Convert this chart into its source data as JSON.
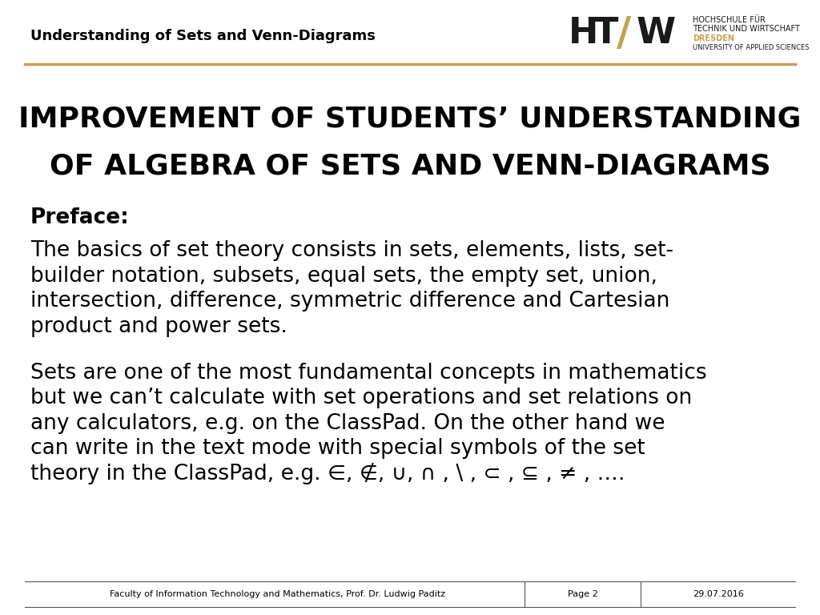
{
  "bg_color": "#ffffff",
  "header_title": "Understanding of Sets and Venn-Diagrams",
  "header_line_color": "#c8a050",
  "logo_text1": "HOCHSCHULE FÜR",
  "logo_text2": "TECHNIK UND WIRTSCHAFT",
  "logo_text3": "DRESDEN",
  "logo_text4": "UNIVERSITY OF APPLIED SCIENCES",
  "logo_color": "#c8a050",
  "main_title_line1": "IMPROVEMENT OF STUDENTS’ UNDERSTANDING",
  "main_title_line2": "OF ALGEBRA OF SETS AND VENN-DIAGRAMS",
  "preface_label": "Preface:",
  "para1_lines": [
    "The basics of set theory consists in sets, elements, lists, set-",
    "builder notation, subsets, equal sets, the empty set, union,",
    "intersection, difference, symmetric difference and Cartesian",
    "product and power sets."
  ],
  "para2_lines": [
    "Sets are one of the most fundamental concepts in mathematics",
    "but we can’t calculate with set operations and set relations on",
    "any calculators, e.g. on the ClassPad. On the other hand we",
    "can write in the text mode with special symbols of the set",
    "theory in the ClassPad, e.g. ∈, ∉, ∪, ∩ , \\ , ⊂ , ⊆ , ≠ , …."
  ],
  "footer_text": "Faculty of Information Technology and Mathematics, Prof. Dr. Ludwig Paditz",
  "footer_page": "Page 2",
  "footer_date": "29.07.2016",
  "footer_line_color": "#555555",
  "text_color": "#000000",
  "title_color": "#000000",
  "header_fontsize": 13,
  "title_fontsize": 26,
  "preface_fontsize": 19,
  "body_fontsize": 19,
  "footer_fontsize": 8,
  "logo_uni_fontsize": 7
}
